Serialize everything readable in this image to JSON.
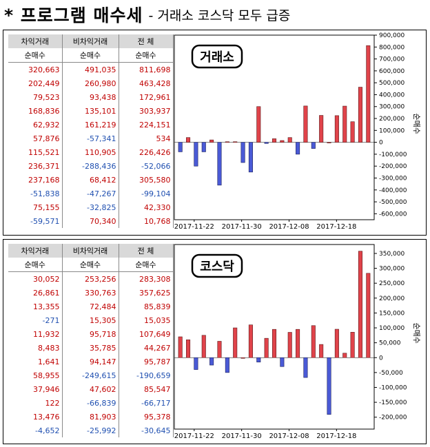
{
  "header": {
    "title": "* 프로그램 매수세",
    "subtitle": "- 거래소 코스닥 모두 급증"
  },
  "colors": {
    "positive": "#e0434a",
    "negative": "#4a5ad6",
    "pos_text": "#c00000",
    "neg_text": "#1f4fb0"
  },
  "panels": [
    {
      "table": {
        "headers": [
          "차익거래",
          "비차익거래",
          "전 체"
        ],
        "subheaders": [
          "순매수",
          "순매수",
          "순매수"
        ],
        "rows": [
          [
            "320,663",
            "491,035",
            "811,698"
          ],
          [
            "202,449",
            "260,980",
            "463,428"
          ],
          [
            "79,523",
            "93,438",
            "172,961"
          ],
          [
            "168,836",
            "135,101",
            "303,937"
          ],
          [
            "62,932",
            "161,219",
            "224,151"
          ],
          [
            "57,876",
            "-57,341",
            "534"
          ],
          [
            "115,521",
            "110,905",
            "226,426"
          ],
          [
            "236,371",
            "-288,436",
            "-52,066"
          ],
          [
            "237,168",
            "68,412",
            "305,580"
          ],
          [
            "-51,838",
            "-47,267",
            "-99,104"
          ],
          [
            "75,155",
            "-32,825",
            "42,330"
          ],
          [
            "-59,571",
            "70,340",
            "10,768"
          ]
        ]
      },
      "chart_data": {
        "type": "bar",
        "badge": "거래소",
        "ylabel": "순매수",
        "ylim": [
          -650000,
          900000
        ],
        "yticks": [
          900000,
          800000,
          700000,
          600000,
          500000,
          400000,
          300000,
          200000,
          100000,
          0,
          -100000,
          -200000,
          -300000,
          -400000,
          -500000,
          -600000
        ],
        "ytick_labels": [
          "900,000",
          "800,000",
          "700,000",
          "600,000",
          "500,000",
          "400,000",
          "300,000",
          "200,000",
          "100,000",
          "0",
          "-100,000",
          "-200,000",
          "-300,000",
          "-400,000",
          "-500,000",
          "-600,000"
        ],
        "xtick_labels": [
          "2017-11-22",
          "2017-11-30",
          "2017-12-08",
          "2017-12-18"
        ],
        "xtick_index": [
          3,
          11,
          19,
          27
        ],
        "values": [
          -80000,
          40000,
          -200000,
          -80000,
          20000,
          -360000,
          5000,
          5000,
          -170000,
          -250000,
          300000,
          -10000,
          30000,
          15000,
          40000,
          -100000,
          305000,
          -52000,
          226000,
          0,
          224000,
          304000,
          173000,
          463000,
          812000
        ]
      }
    },
    {
      "table": {
        "headers": [
          "차익거래",
          "비차익거래",
          "전 체"
        ],
        "subheaders": [
          "순매수",
          "순매수",
          "순매수"
        ],
        "rows": [
          [
            "30,052",
            "253,256",
            "283,308"
          ],
          [
            "26,861",
            "330,763",
            "357,625"
          ],
          [
            "13,355",
            "72,484",
            "85,839"
          ],
          [
            "-271",
            "15,305",
            "15,035"
          ],
          [
            "11,932",
            "95,718",
            "107,649"
          ],
          [
            "8,483",
            "35,785",
            "44,267"
          ],
          [
            "1,641",
            "94,147",
            "95,787"
          ],
          [
            "58,955",
            "-249,615",
            "-190,659"
          ],
          [
            "37,946",
            "47,602",
            "85,547"
          ],
          [
            "122",
            "-66,839",
            "-66,717"
          ],
          [
            "13,476",
            "81,903",
            "95,378"
          ],
          [
            "-4,652",
            "-25,992",
            "-30,645"
          ]
        ]
      },
      "chart_data": {
        "type": "bar",
        "badge": "코스닥",
        "ylabel": "순매수",
        "ylim": [
          -240000,
          380000
        ],
        "yticks": [
          350000,
          300000,
          250000,
          200000,
          150000,
          100000,
          50000,
          0,
          -50000,
          -100000,
          -150000,
          -200000
        ],
        "ytick_labels": [
          "350,000",
          "300,000",
          "250,000",
          "200,000",
          "150,000",
          "100,000",
          "50,000",
          "0",
          "-50,000",
          "-100,000",
          "-150,000",
          "-200,000"
        ],
        "xtick_labels": [
          "2017-11-22",
          "2017-11-30",
          "2017-12-08",
          "2017-12-18"
        ],
        "xtick_index": [
          3,
          11,
          19,
          27
        ],
        "values": [
          70000,
          60000,
          -40000,
          75000,
          -25000,
          55000,
          -50000,
          100000,
          0,
          110000,
          -15000,
          65000,
          95000,
          -30000,
          85000,
          95000,
          -66700,
          107600,
          44300,
          -190700,
          95400,
          15000,
          85500,
          357600,
          283300
        ]
      }
    }
  ]
}
